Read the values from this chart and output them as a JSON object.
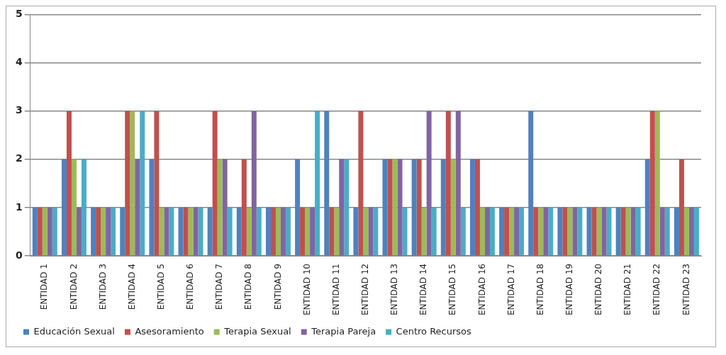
{
  "chart_data": {
    "type": "bar",
    "categories": [
      "ENTIDAD 1",
      "ENTIDAD 2",
      "ENTIDAD 3",
      "ENTIDAD 4",
      "ENTIDAD 5",
      "ENTIDAD 6",
      "ENTIDAD 7",
      "ENTIDAD 8",
      "ENTIDAD 9",
      "ENTIDAD 10",
      "ENTIDAD 11",
      "ENTIDAD 12",
      "ENTIDAD 13",
      "ENTIDAD 14",
      "ENTIDAD 15",
      "ENTIDAD 16",
      "ENTIDAD 17",
      "ENTIDAD 18",
      "ENTIDAD 19",
      "ENTIDAD 20",
      "ENTIDAD 21",
      "ENTIDAD 22",
      "ENTIDAD 23"
    ],
    "series": [
      {
        "name": "Educación Sexual",
        "color": "#4f81bd",
        "values": [
          1,
          2,
          1,
          1,
          2,
          1,
          1,
          1,
          1,
          2,
          3,
          1,
          2,
          2,
          2,
          2,
          1,
          3,
          1,
          1,
          1,
          2,
          1
        ]
      },
      {
        "name": "Asesoramiento",
        "color": "#c0504d",
        "values": [
          1,
          3,
          1,
          3,
          3,
          1,
          3,
          2,
          1,
          1,
          1,
          3,
          2,
          2,
          3,
          2,
          1,
          1,
          1,
          1,
          1,
          3,
          2
        ]
      },
      {
        "name": "Terapia Sexual",
        "color": "#9bbb59",
        "values": [
          1,
          2,
          1,
          3,
          1,
          1,
          2,
          1,
          1,
          1,
          1,
          1,
          2,
          1,
          2,
          1,
          1,
          1,
          1,
          1,
          1,
          3,
          1
        ]
      },
      {
        "name": "Terapia Pareja",
        "color": "#8064a2",
        "values": [
          1,
          1,
          1,
          2,
          1,
          1,
          2,
          3,
          1,
          1,
          2,
          1,
          2,
          3,
          3,
          1,
          1,
          1,
          1,
          1,
          1,
          1,
          1
        ]
      },
      {
        "name": "Centro Recursos",
        "color": "#4bacc6",
        "values": [
          1,
          2,
          1,
          3,
          1,
          1,
          1,
          1,
          1,
          3,
          2,
          1,
          1,
          1,
          1,
          1,
          1,
          1,
          1,
          1,
          1,
          1,
          1
        ]
      }
    ],
    "ylim": [
      0,
      5
    ],
    "yticks": [
      0,
      1,
      2,
      3,
      4,
      5
    ],
    "grid": "y",
    "legend": "bottom"
  }
}
